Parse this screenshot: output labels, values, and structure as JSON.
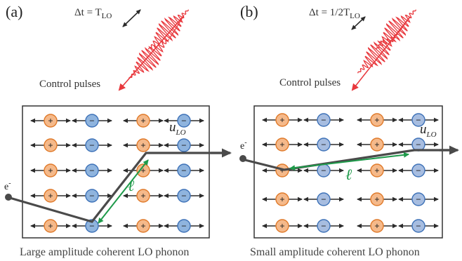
{
  "panels": [
    {
      "id": "a",
      "letter": "(a)",
      "delay_label": "Δt = T",
      "delay_sub": "LO",
      "control_label": "Control pulses",
      "caption": "Large amplitude coherent LO phonon",
      "electron_label": "e",
      "electron_sup": "-",
      "u_label": "u",
      "u_sub": "LO",
      "mfp_label": "ℓ",
      "colors": {
        "positive": "#f5b98a",
        "negative": "#8fb4de"
      }
    },
    {
      "id": "b",
      "letter": "(b)",
      "delay_label": "Δt = 1/2T",
      "delay_sub": "LO",
      "control_label": "Control pulses",
      "caption": "Small amplitude coherent LO phonon",
      "electron_label": "e",
      "electron_sup": "-",
      "u_label": "u",
      "u_sub": "LO",
      "mfp_label": "ℓ",
      "colors": {
        "positive": "#f5b98a",
        "negative": "#a7bde0"
      }
    }
  ],
  "ion_signs": {
    "positive": "+",
    "negative": "−"
  },
  "colors": {
    "pulse": "#e8383d",
    "arrow_dark": "#3a3a3a",
    "mfp": "#1e9a4a",
    "positive_stroke": "#e07a2a",
    "negative_stroke": "#3e72b8",
    "trajectory": "#4a4a4a"
  }
}
